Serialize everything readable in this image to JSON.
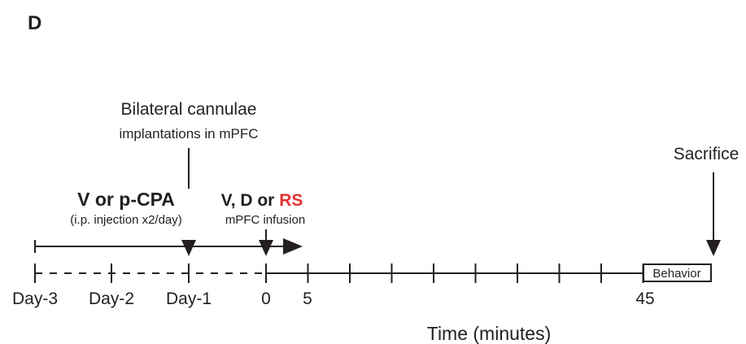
{
  "panel_label": "D",
  "surgery": {
    "title": "Bilateral cannulae",
    "subtitle": "implantations in mPFC"
  },
  "pretreatment": {
    "title": "V or p-CPA",
    "subtitle": "(i.p. injection x2/day)"
  },
  "infusion": {
    "title_prefix": "V, D or ",
    "title_highlight": "RS",
    "subtitle": "mPFC infusion"
  },
  "sacrifice_label": "Sacrifice",
  "behavior_label": "Behavior",
  "day_labels": [
    "Day-3",
    "Day-2",
    "Day-1"
  ],
  "minute_labels": [
    "0",
    "5",
    "45"
  ],
  "x_axis_title": "Time (minutes)",
  "colors": {
    "ink": "#231f20",
    "highlight": "#e8312f"
  }
}
